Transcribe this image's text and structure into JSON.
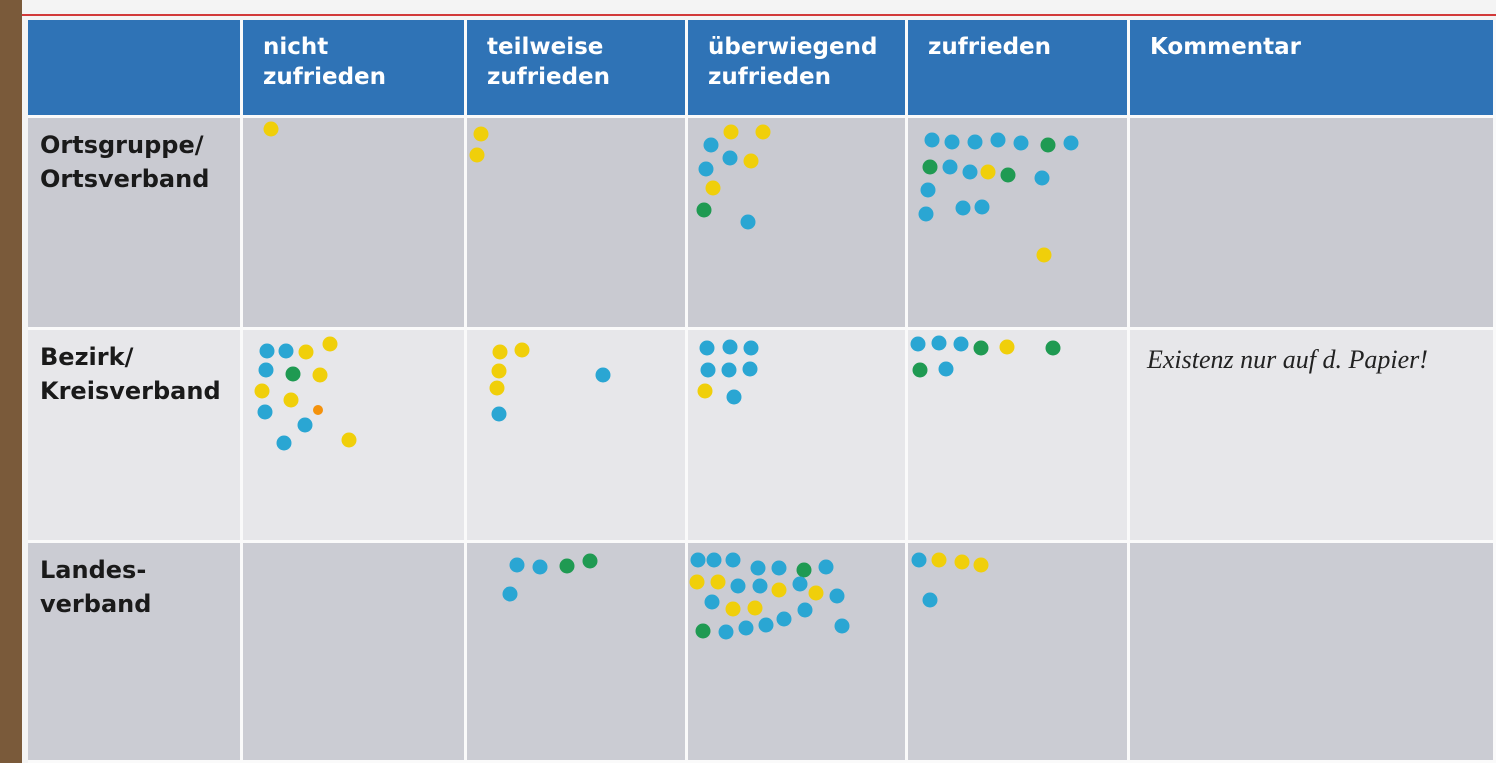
{
  "table": {
    "header": [
      [],
      [
        "nicht",
        "zufrieden"
      ],
      [
        "teilweise",
        "zufrieden"
      ],
      [
        "überwiegend",
        "zufrieden"
      ],
      [
        "zufrieden"
      ],
      [
        "Kommentar"
      ]
    ],
    "rows": [
      {
        "label": [
          "Ortsgruppe/",
          "Ortsverband"
        ],
        "comment": null
      },
      {
        "label": [
          "Bezirk/",
          "Kreisverband"
        ],
        "comment": "Existenz nur auf d. Papier!"
      },
      {
        "label": [
          "Landes-",
          "verband"
        ],
        "comment": null
      }
    ]
  }
}
